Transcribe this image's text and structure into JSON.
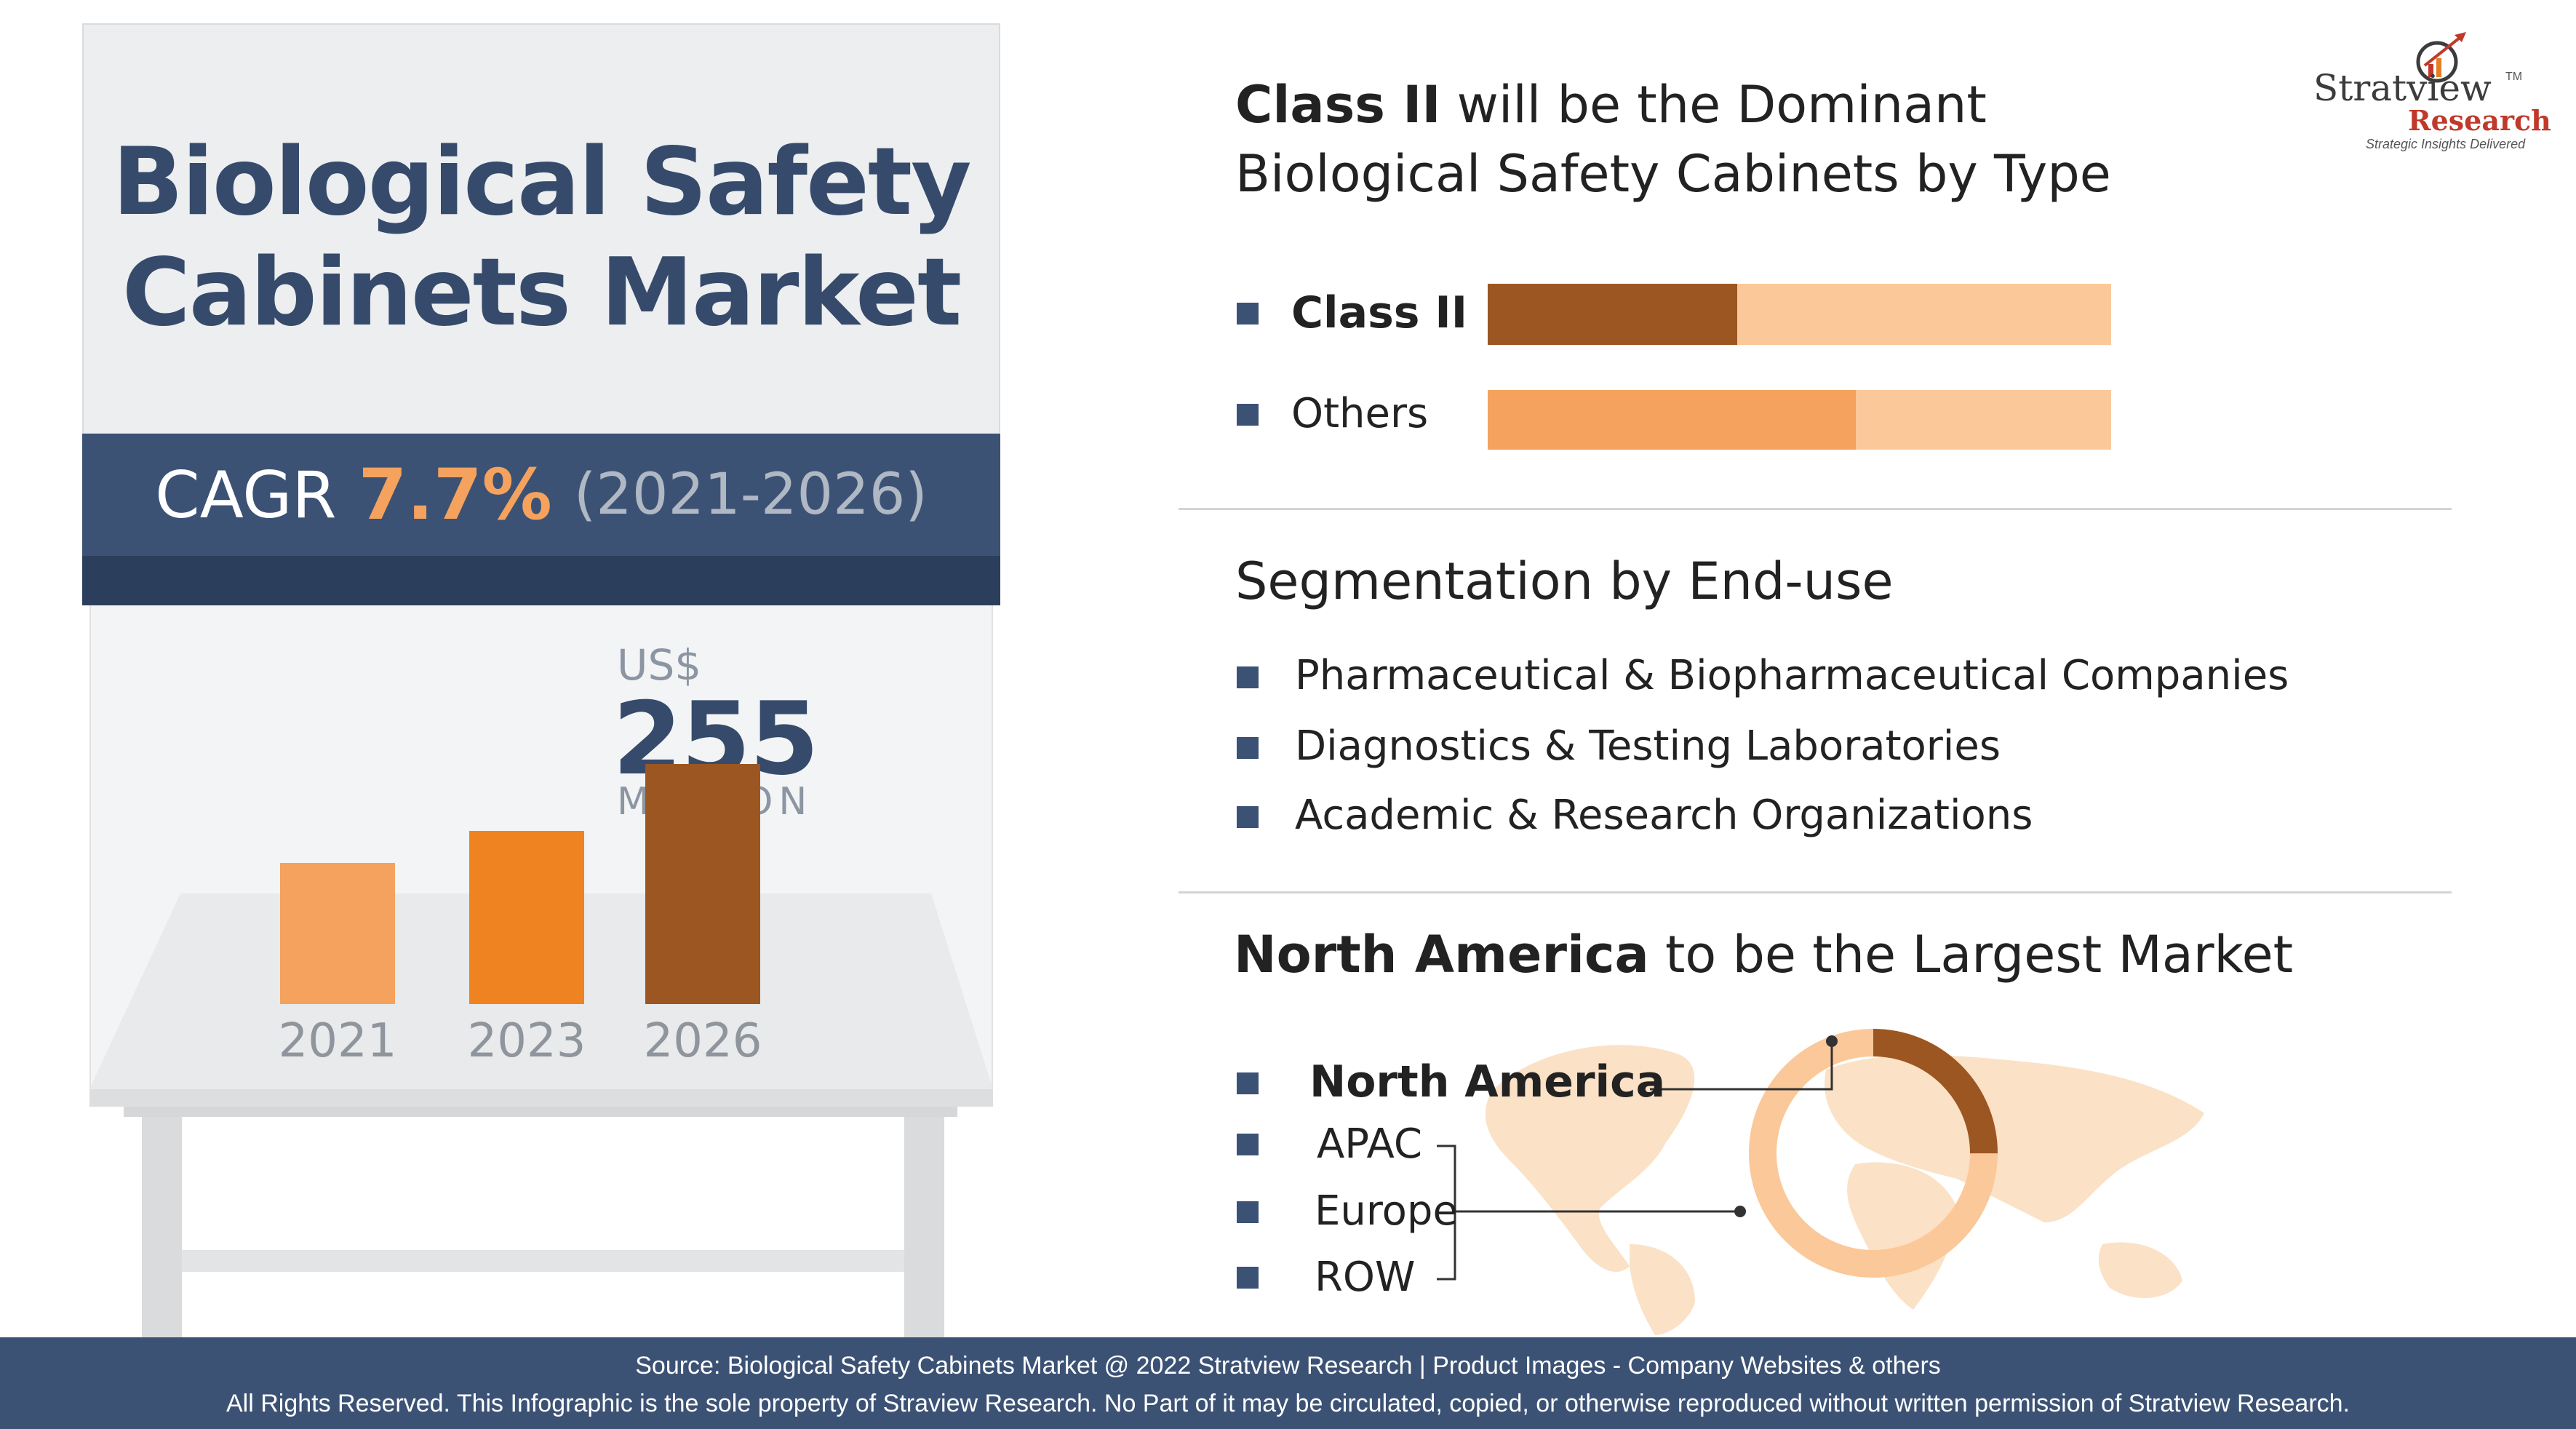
{
  "title_line1": "Biological Safety",
  "title_line2": "Cabinets Market",
  "cagr": {
    "label": "CAGR",
    "value": "7.7%",
    "period": "(2021-2026)"
  },
  "market_size": {
    "currency": "US$",
    "value": "255",
    "unit": "MILLION"
  },
  "bar_chart": {
    "years": [
      "2021",
      "2023",
      "2026"
    ],
    "relative_heights": [
      0.44,
      0.54,
      0.75
    ],
    "colors": [
      "#f4a25e",
      "#ef8321",
      "#9b5622"
    ]
  },
  "type_section": {
    "heading_bold": "Class II",
    "heading_rest": " will be the Dominant",
    "heading_line2": "Biological Safety Cabinets by Type",
    "items": [
      {
        "label": "Class II",
        "share": 0.4,
        "fill": "#9b5622",
        "track": "#fbc89a"
      },
      {
        "label": "Others",
        "share": 0.59,
        "fill": "#f4a25e",
        "track": "#fbc89a"
      }
    ]
  },
  "enduse_section": {
    "heading": "Segmentation by End-use",
    "items": [
      "Pharmaceutical & Biopharmaceutical Companies",
      "Diagnostics & Testing Laboratories",
      "Academic & Research Organizations"
    ]
  },
  "region_section": {
    "heading_bold": "North America",
    "heading_rest": " to be the Largest Market",
    "items": [
      "North America",
      "APAC",
      "Europe",
      "ROW"
    ],
    "donut": {
      "highlight_share": 0.25,
      "highlight_color": "#9b5622",
      "rest_color": "#fbc89a"
    }
  },
  "footer": {
    "line1": "Source: Biological Safety Cabinets Market @ 2022 Stratview Research | Product Images - Company Websites & others",
    "line2": "All Rights Reserved. This Infographic is the sole property of Straview Research. No Part of it may be circulated, copied, or otherwise reproduced without written permission of Stratview Research."
  },
  "logo": {
    "name": "Stratview",
    "research": "Research",
    "tagline": "Strategic Insights Delivered",
    "tm": "TM"
  }
}
